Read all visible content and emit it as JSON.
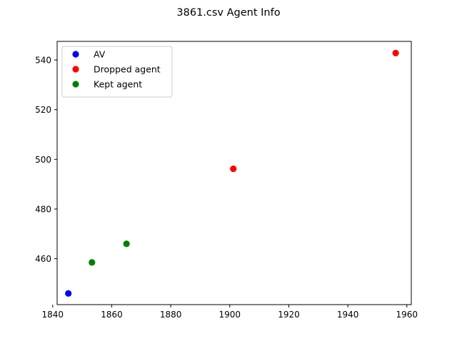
{
  "chart_data": {
    "type": "scatter",
    "title": "3861.csv Agent Info",
    "xlabel": "",
    "ylabel": "",
    "xlim": [
      1841.5,
      1961.5
    ],
    "ylim": [
      441.5,
      547.5
    ],
    "xticks": [
      1840,
      1860,
      1880,
      1900,
      1920,
      1940,
      1960
    ],
    "yticks": [
      460,
      480,
      500,
      520,
      540
    ],
    "grid": false,
    "legend_position": "top-left",
    "series": [
      {
        "name": "AV",
        "color": "#0000ff",
        "points": [
          {
            "x": 1845.3,
            "y": 446.0
          }
        ]
      },
      {
        "name": "Dropped agent",
        "color": "#ff0000",
        "points": [
          {
            "x": 1901.2,
            "y": 496.2
          },
          {
            "x": 1956.2,
            "y": 542.8
          }
        ]
      },
      {
        "name": "Kept agent",
        "color": "#008000",
        "points": [
          {
            "x": 1853.3,
            "y": 458.5
          },
          {
            "x": 1865.0,
            "y": 466.0
          }
        ]
      }
    ]
  }
}
